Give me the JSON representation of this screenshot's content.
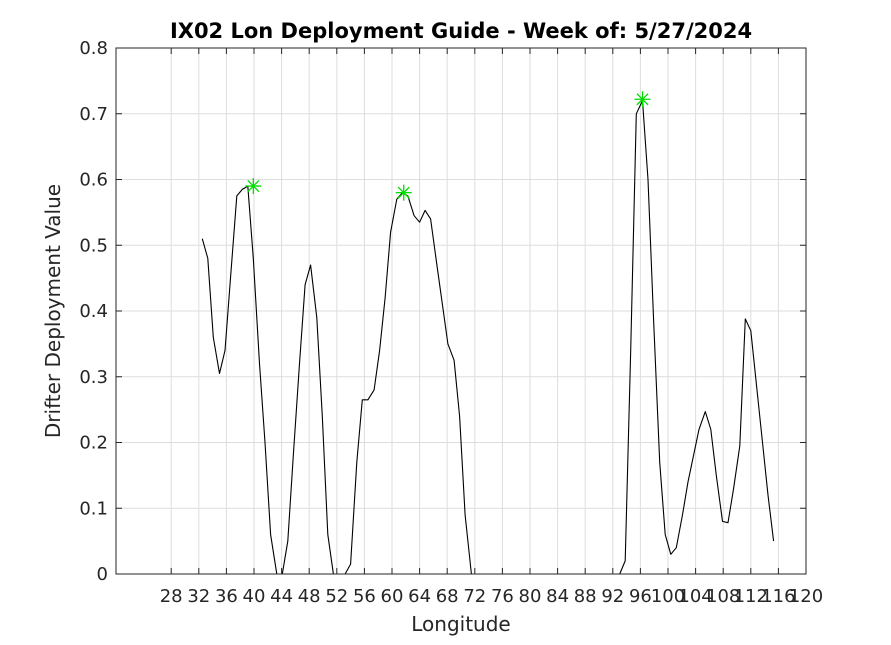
{
  "chart_data": {
    "type": "line",
    "title": "IX02 Lon Deployment Guide - Week of: 5/27/2024",
    "xlabel": "Longitude",
    "ylabel": "Drifter Deployment Value",
    "xlim": [
      20,
      120
    ],
    "ylim": [
      0,
      0.8
    ],
    "xticks": [
      28,
      32,
      36,
      40,
      44,
      48,
      52,
      56,
      60,
      64,
      68,
      72,
      76,
      80,
      84,
      88,
      92,
      96,
      100,
      104,
      108,
      112,
      116,
      120
    ],
    "xtick_labels": [
      "28",
      "32",
      "36",
      "40",
      "44",
      "48",
      "52",
      "56",
      "60",
      "64",
      "68",
      "72",
      "76",
      "80",
      "84",
      "88",
      "92",
      "96",
      "100",
      "104",
      "108",
      "112",
      "116",
      "120"
    ],
    "yticks": [
      0,
      0.1,
      0.2,
      0.3,
      0.4,
      0.5,
      0.6,
      0.7,
      0.8
    ],
    "ytick_labels": [
      "0",
      "0.1",
      "0.2",
      "0.3",
      "0.4",
      "0.5",
      "0.6",
      "0.7",
      "0.8"
    ],
    "grid": true,
    "series": [
      {
        "color": "#000000",
        "x": [
          32.5,
          33.3,
          34.1,
          35.0,
          35.8,
          36.6,
          37.5,
          38.3,
          39.1,
          39.9,
          40.8,
          41.6,
          42.4,
          43.3,
          44.1,
          44.9,
          45.7,
          46.6,
          47.4,
          48.2,
          49.1,
          49.9,
          50.7,
          51.5,
          52.4,
          53.2,
          54.0,
          54.9,
          55.7,
          56.5,
          57.4,
          58.2,
          59.0,
          59.8,
          60.7,
          61.5,
          62.3,
          63.2,
          64.0,
          64.8,
          65.6,
          66.5,
          67.3,
          68.1,
          69.0,
          69.8,
          70.6,
          71.5,
          72.3,
          93.0,
          93.8,
          94.6,
          95.4,
          96.3,
          97.1,
          97.9,
          98.8,
          99.6,
          100.4,
          101.2,
          102.1,
          102.9,
          103.7,
          104.5,
          105.4,
          106.2,
          107.0,
          107.9,
          108.7,
          109.5,
          110.4,
          111.2,
          112.0,
          112.8,
          113.7,
          114.5,
          115.3
        ],
        "y": [
          0.51,
          0.48,
          0.36,
          0.305,
          0.34,
          0.45,
          0.575,
          0.585,
          0.59,
          0.48,
          0.32,
          0.2,
          0.06,
          0.0,
          0.0,
          0.05,
          0.18,
          0.32,
          0.44,
          0.47,
          0.39,
          0.24,
          0.06,
          0.0,
          0.0,
          0.0,
          0.015,
          0.17,
          0.265,
          0.265,
          0.28,
          0.34,
          0.42,
          0.52,
          0.57,
          0.58,
          0.575,
          0.545,
          0.535,
          0.553,
          0.54,
          0.47,
          0.41,
          0.35,
          0.325,
          0.24,
          0.09,
          0.0,
          0.0,
          0.0,
          0.02,
          0.34,
          0.7,
          0.72,
          0.6,
          0.39,
          0.17,
          0.06,
          0.03,
          0.04,
          0.09,
          0.14,
          0.18,
          0.22,
          0.247,
          0.22,
          0.15,
          0.08,
          0.078,
          0.13,
          0.195,
          0.388,
          0.37,
          0.29,
          0.2,
          0.12,
          0.05
        ]
      }
    ],
    "peaks": {
      "color": "#00dd00",
      "marker": "asterisk",
      "x": [
        39.9,
        61.7,
        96.3
      ],
      "y": [
        0.59,
        0.58,
        0.722
      ]
    }
  }
}
